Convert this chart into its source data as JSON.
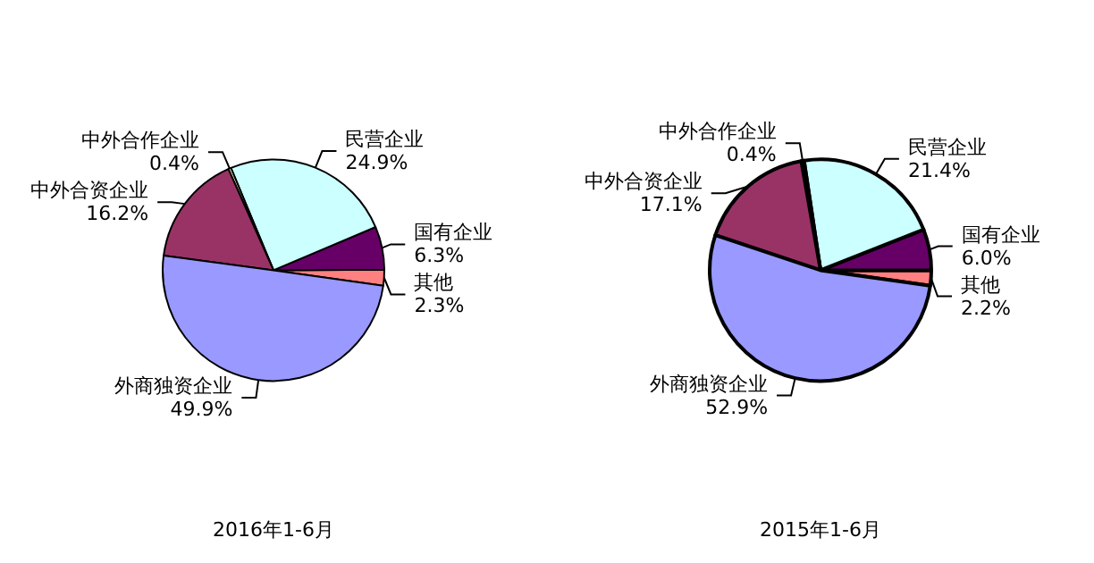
{
  "chart_data": [
    {
      "type": "pie",
      "title": "2016年1-6月",
      "categories": [
        "其他",
        "国有企业",
        "民营企业",
        "中外合作企业",
        "中外合资企业",
        "外商独资企业"
      ],
      "values": [
        2.3,
        6.3,
        24.9,
        0.4,
        16.2,
        49.9
      ],
      "value_labels": [
        "2.3%",
        "6.3%",
        "24.9%",
        "0.4%",
        "16.2%",
        "49.9%"
      ],
      "colors": [
        "#ff8080",
        "#660066",
        "#ccffff",
        "#ffffcc",
        "#993366",
        "#9999ff"
      ]
    },
    {
      "type": "pie",
      "title": "2015年1-6月",
      "categories": [
        "其他",
        "国有企业",
        "民营企业",
        "中外合作企业",
        "中外合资企业",
        "外商独资企业"
      ],
      "values": [
        2.2,
        6.0,
        21.4,
        0.4,
        17.1,
        52.9
      ],
      "value_labels": [
        "2.2%",
        "6.0%",
        "21.4%",
        "0.4%",
        "17.1%",
        "52.9%"
      ],
      "colors": [
        "#ff8080",
        "#660066",
        "#ccffff",
        "#ffffcc",
        "#993366",
        "#9999ff"
      ]
    }
  ]
}
